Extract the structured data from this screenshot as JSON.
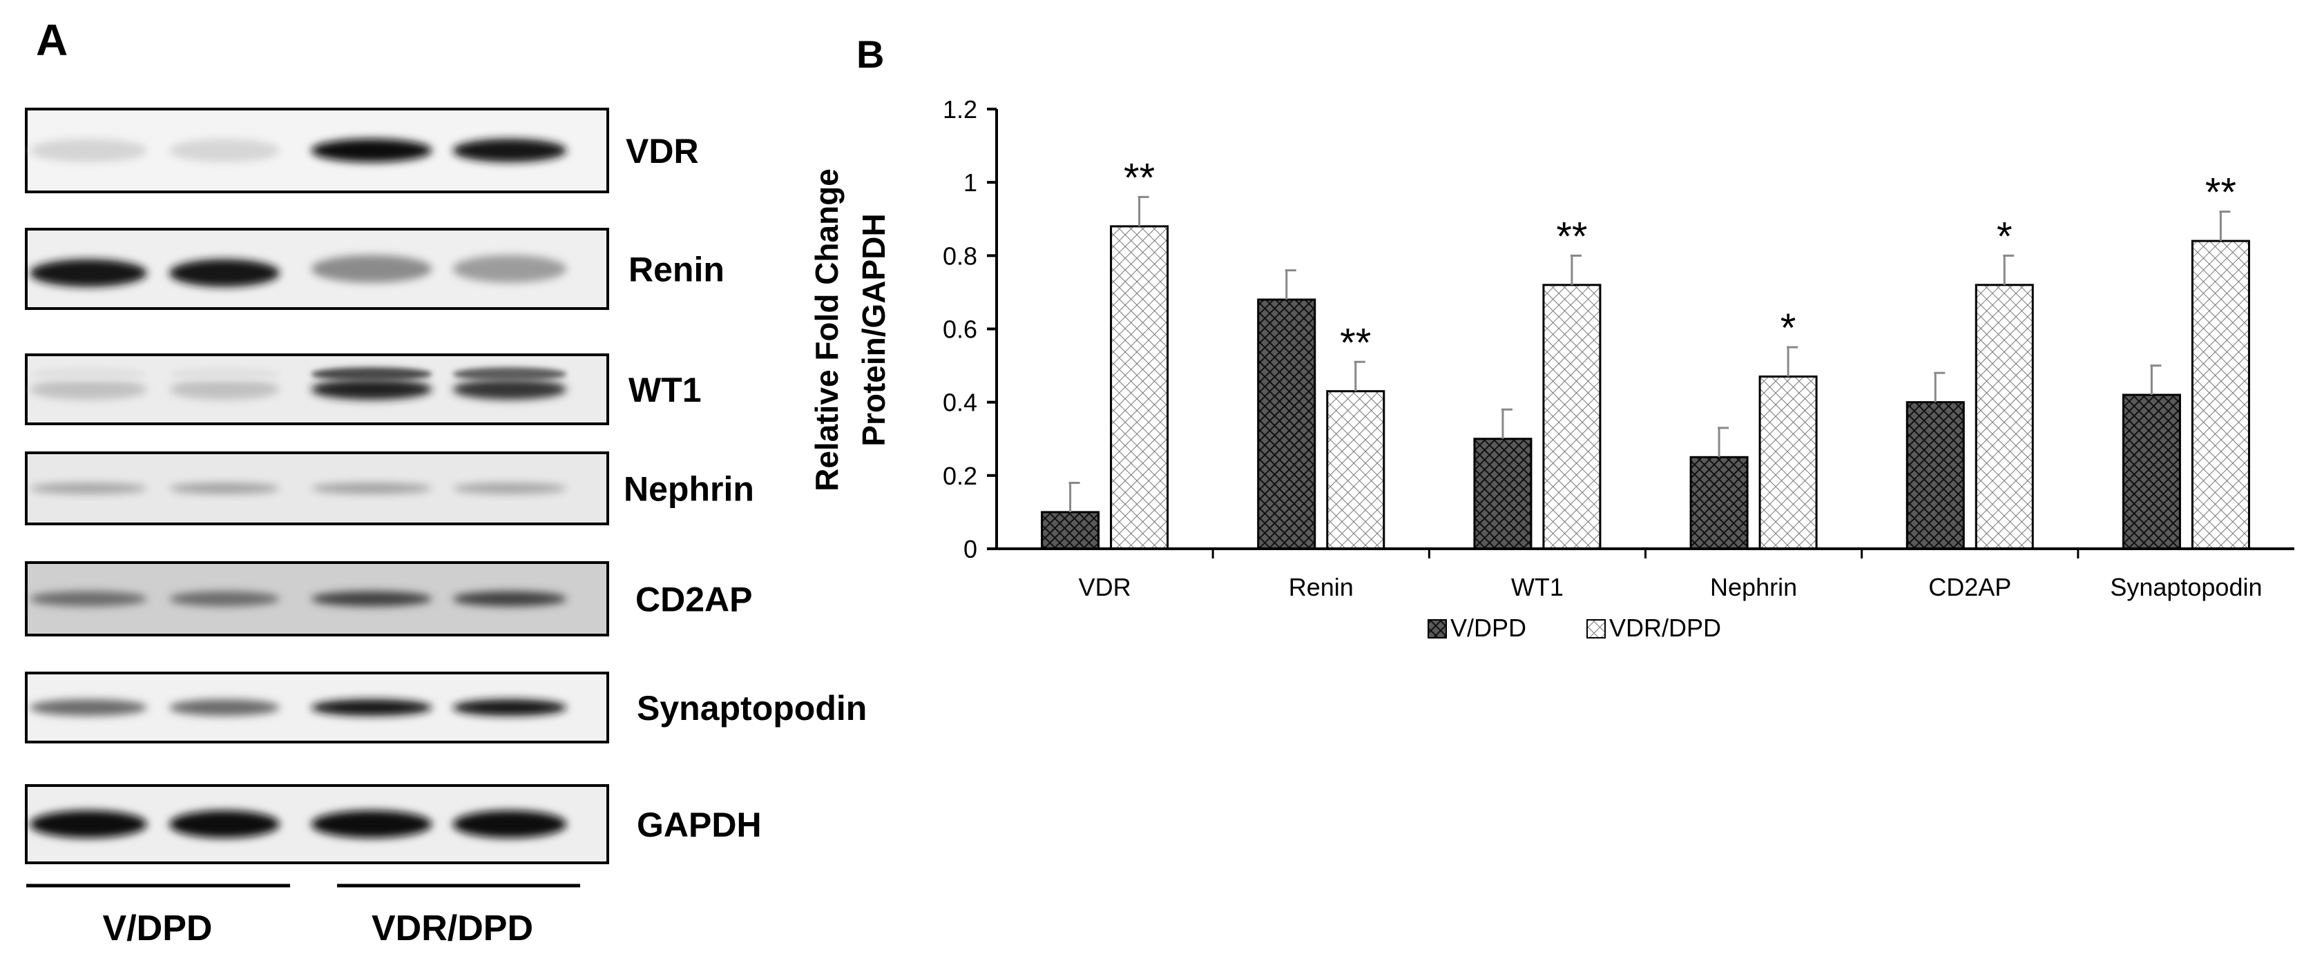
{
  "panel_a": {
    "letter": "A",
    "proteins": [
      "VDR",
      "Renin",
      "WT1",
      "Nephrin",
      "CD2AP",
      "Synaptopodin",
      "GAPDH"
    ],
    "groups": [
      "V/DPD",
      "VDR/DPD"
    ]
  },
  "panel_b": {
    "letter": "B"
  },
  "chart_data": {
    "type": "bar",
    "title": "",
    "xlabel": "",
    "ylabel_lines": [
      "Relative Fold Change",
      "Protein/GAPDH"
    ],
    "ylim": [
      0,
      1.2
    ],
    "yticks": [
      0,
      0.2,
      0.4,
      0.6,
      0.8,
      1,
      1.2
    ],
    "ytick_labels": [
      "0",
      "0.2",
      "0.4",
      "0.6",
      "0.8",
      "1",
      "1.2"
    ],
    "categories": [
      "VDR",
      "Renin",
      "WT1",
      "Nephrin",
      "CD2AP",
      "Synaptopodin"
    ],
    "series": [
      {
        "name": "V/DPD",
        "pattern": "dense-crosshatch",
        "values": [
          0.1,
          0.68,
          0.3,
          0.25,
          0.4,
          0.42
        ],
        "errors": [
          0.08,
          0.08,
          0.08,
          0.08,
          0.08,
          0.08
        ]
      },
      {
        "name": "VDR/DPD",
        "pattern": "light-crosshatch",
        "values": [
          0.88,
          0.43,
          0.72,
          0.47,
          0.72,
          0.84
        ],
        "errors": [
          0.08,
          0.08,
          0.08,
          0.08,
          0.08,
          0.08
        ]
      }
    ],
    "significance": [
      "**",
      "**",
      "**",
      "*",
      "*",
      "**"
    ],
    "legend_position": "bottom-center",
    "grid": false
  }
}
